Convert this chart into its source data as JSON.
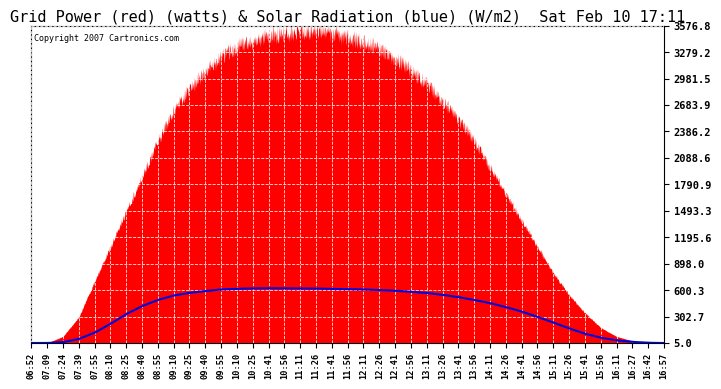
{
  "title": "Grid Power (red) (watts) & Solar Radiation (blue) (W/m2)  Sat Feb 10 17:11",
  "copyright_text": "Copyright 2007 Cartronics.com",
  "yticks": [
    5.0,
    302.7,
    600.3,
    898.0,
    1195.6,
    1493.3,
    1790.9,
    2088.6,
    2386.2,
    2683.9,
    2981.5,
    3279.2,
    3576.8
  ],
  "ymin": 5.0,
  "ymax": 3576.8,
  "background_color": "#ffffff",
  "plot_bg_color": "#ffffff",
  "grid_color": "#b0b0b0",
  "title_fontsize": 11,
  "red_color": "#ff0000",
  "blue_color": "#0000dd",
  "xtick_labels": [
    "06:52",
    "07:09",
    "07:24",
    "07:39",
    "07:55",
    "08:10",
    "08:25",
    "08:40",
    "08:55",
    "09:10",
    "09:25",
    "09:40",
    "09:55",
    "10:10",
    "10:25",
    "10:41",
    "10:56",
    "11:11",
    "11:26",
    "11:41",
    "11:56",
    "12:11",
    "12:26",
    "12:41",
    "12:56",
    "13:11",
    "13:26",
    "13:41",
    "13:56",
    "14:11",
    "14:26",
    "14:41",
    "14:56",
    "15:11",
    "15:26",
    "15:41",
    "15:56",
    "16:11",
    "16:27",
    "16:42",
    "16:57"
  ],
  "n_points": 41,
  "red_values": [
    5,
    5,
    80,
    300,
    700,
    1100,
    1500,
    1900,
    2300,
    2650,
    2900,
    3100,
    3250,
    3380,
    3450,
    3500,
    3520,
    3540,
    3550,
    3520,
    3480,
    3420,
    3350,
    3250,
    3100,
    2950,
    2750,
    2550,
    2300,
    2000,
    1700,
    1400,
    1100,
    800,
    550,
    350,
    180,
    80,
    30,
    10,
    5
  ],
  "blue_values": [
    5,
    5,
    15,
    50,
    120,
    220,
    330,
    420,
    490,
    540,
    570,
    590,
    608,
    615,
    620,
    622,
    621,
    620,
    618,
    615,
    612,
    608,
    602,
    594,
    582,
    568,
    548,
    522,
    490,
    455,
    410,
    360,
    300,
    235,
    170,
    110,
    65,
    35,
    18,
    8,
    5
  ]
}
